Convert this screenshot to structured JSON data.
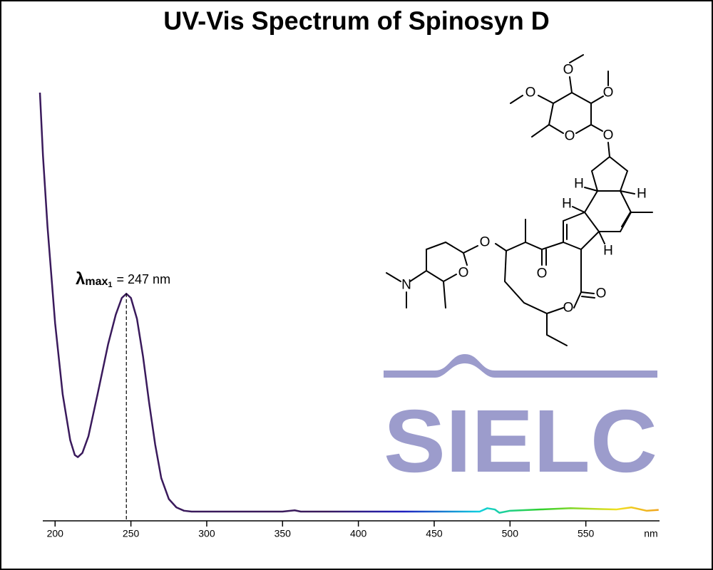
{
  "chart_data": {
    "type": "line",
    "title": "UV-Vis Spectrum of Spinosyn D",
    "xlabel": "nm",
    "xlim": [
      190,
      600
    ],
    "xticks": [
      200,
      250,
      300,
      350,
      400,
      450,
      500,
      550
    ],
    "ylim": [
      0,
      1
    ],
    "series": [
      {
        "color": "#3a1a5c",
        "x": [
          190,
          192,
          195,
          200,
          205,
          210,
          213,
          215,
          218,
          222,
          228,
          235,
          240,
          244,
          247,
          250,
          254,
          258,
          262,
          266,
          270,
          275,
          280,
          285,
          290,
          350,
          358,
          362,
          400,
          480,
          485,
          490,
          493,
          500,
          520,
          540,
          560,
          570,
          580,
          590,
          598
        ],
        "values": [
          1.0,
          0.85,
          0.68,
          0.45,
          0.28,
          0.17,
          0.135,
          0.13,
          0.14,
          0.18,
          0.28,
          0.4,
          0.47,
          0.51,
          0.52,
          0.51,
          0.46,
          0.37,
          0.26,
          0.16,
          0.08,
          0.03,
          0.01,
          0.002,
          0,
          0,
          0.003,
          0,
          0,
          0,
          0.008,
          0.005,
          -0.003,
          0.002,
          0.005,
          0.008,
          0.006,
          0.005,
          0.01,
          0.002,
          0.004
        ]
      }
    ],
    "annotations": [
      {
        "x": 247,
        "symbol": "λ",
        "subscript": "max",
        "subsubscript": "1",
        "text": "= 247 nm"
      }
    ],
    "watermark": "SIELC"
  },
  "molecule": {
    "atoms": [
      "O",
      "O",
      "O",
      "O",
      "O",
      "H",
      "H",
      "H",
      "H",
      "O",
      "O",
      "O",
      "N",
      "O",
      "O"
    ]
  }
}
